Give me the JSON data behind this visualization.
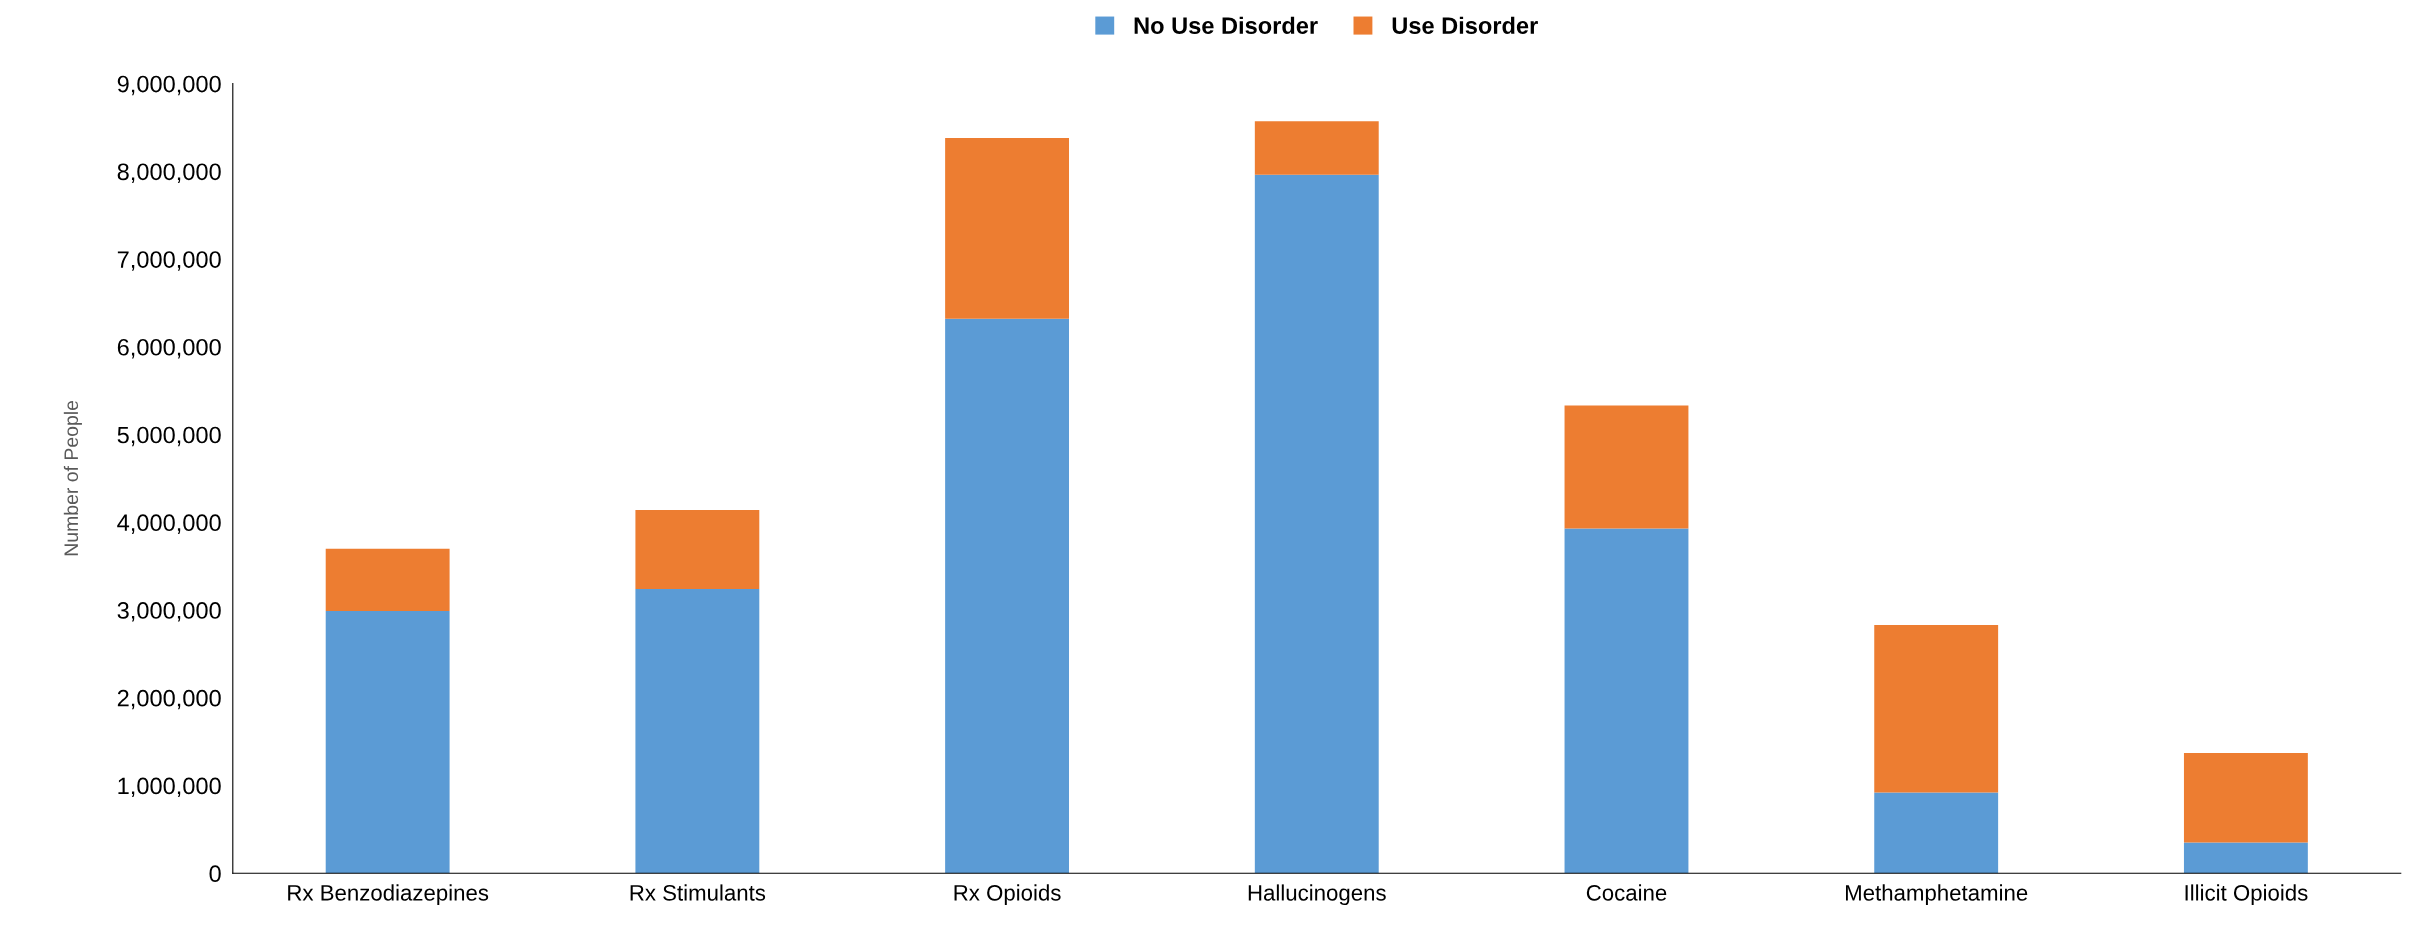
{
  "chart_data": {
    "type": "bar",
    "stacked": true,
    "ylabel": "Number of People",
    "categories": [
      "Rx Benzodiazepines",
      "Rx Stimulants",
      "Rx Opioids",
      "Hallucinogens",
      "Cocaine",
      "Methamphetamine",
      "Illicit Opioids"
    ],
    "series": [
      {
        "name": "No Use Disorder",
        "color": "#5b9bd5",
        "values": [
          2990000,
          3240000,
          6320000,
          7960000,
          3930000,
          920000,
          350000
        ]
      },
      {
        "name": "Use Disorder",
        "color": "#ed7d31",
        "values": [
          710000,
          900000,
          2060000,
          610000,
          1400000,
          1910000,
          1020000
        ]
      }
    ],
    "ylim": [
      0,
      9000000
    ],
    "yticks": [
      {
        "value": 0,
        "label": "0"
      },
      {
        "value": 1000000,
        "label": "1,000,000"
      },
      {
        "value": 2000000,
        "label": "2,000,000"
      },
      {
        "value": 3000000,
        "label": "3,000,000"
      },
      {
        "value": 4000000,
        "label": "4,000,000"
      },
      {
        "value": 5000000,
        "label": "5,000,000"
      },
      {
        "value": 6000000,
        "label": "6,000,000"
      },
      {
        "value": 7000000,
        "label": "7,000,000"
      },
      {
        "value": 8000000,
        "label": "8,000,000"
      },
      {
        "value": 9000000,
        "label": "9,000,000"
      }
    ],
    "legend": "top",
    "grid": false
  }
}
